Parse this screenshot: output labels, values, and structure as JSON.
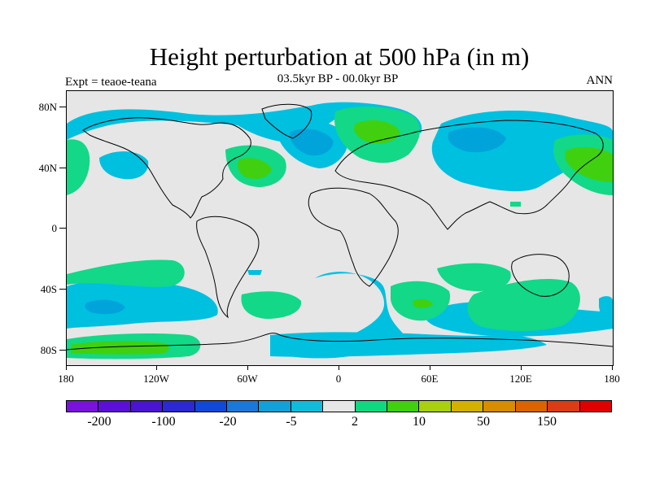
{
  "title": "Height perturbation at 500 hPa (in m)",
  "subtitle": "03.5kyr BP - 00.0kyr BP",
  "expt": "Expt = teaoe-teana",
  "season": "ANN",
  "lat_labels": [
    "80N",
    "40N",
    "0",
    "40S",
    "80S"
  ],
  "lon_labels": [
    "180",
    "120W",
    "60W",
    "0",
    "60E",
    "120E",
    "180"
  ],
  "colorbar": {
    "colors": [
      "#7a12dc",
      "#5c0fd6",
      "#4a14d0",
      "#2c28d2",
      "#1048d8",
      "#1a78d8",
      "#12a0d8",
      "#10bcdc",
      "#e6e6e6",
      "#10d880",
      "#40d010",
      "#a8d010",
      "#d4b000",
      "#d88c00",
      "#dc6400",
      "#dc3c14",
      "#e00000"
    ],
    "labels": [
      "-200",
      "-100",
      "-20",
      "-5",
      "2",
      "10",
      "50",
      "150"
    ]
  },
  "palette": {
    "neg_light": "#00c0e0",
    "neg_mid": "#00a4da",
    "pos_light": "#12d888",
    "pos_mid": "#3fce14",
    "background": "#e6e6e6"
  }
}
